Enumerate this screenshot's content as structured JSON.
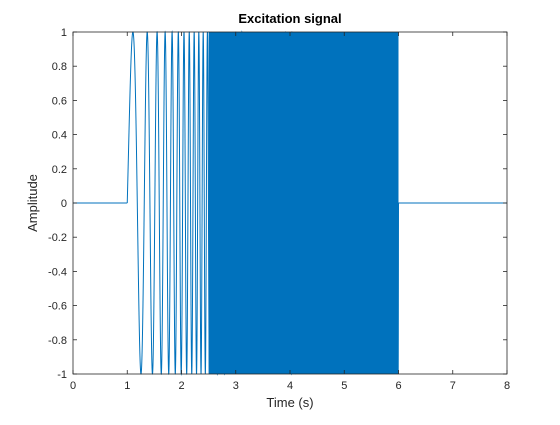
{
  "chart_data": {
    "type": "line",
    "title": "Excitation signal",
    "xlabel": "Time (s)",
    "ylabel": "Amplitude",
    "xlim": [
      0,
      8
    ],
    "ylim": [
      -1,
      1
    ],
    "grid": false,
    "xticks": [
      0,
      1,
      2,
      3,
      4,
      5,
      6,
      7,
      8
    ],
    "yticks": [
      -1,
      -0.8,
      -0.6,
      -0.4,
      -0.2,
      0,
      0.2,
      0.4,
      0.6,
      0.8,
      1
    ],
    "xtick_labels": [
      "0",
      "1",
      "2",
      "3",
      "4",
      "5",
      "6",
      "7",
      "8"
    ],
    "ytick_labels": [
      "-1",
      "-0.8",
      "-0.6",
      "-0.4",
      "-0.2",
      "0",
      "0.2",
      "0.4",
      "0.6",
      "0.8",
      "1"
    ],
    "series": [
      {
        "color": "#0072bd",
        "signal": "swept sine (chirp), amplitude 1",
        "segments": [
          {
            "x": [
              0,
              1
            ],
            "y": [
              0,
              0
            ]
          },
          {
            "x_start": 1,
            "x_end": 6,
            "amplitude": 1,
            "shape": "sine sweep, frequency increasing with time"
          },
          {
            "x": [
              6,
              8
            ],
            "y": [
              0,
              0
            ]
          }
        ]
      }
    ],
    "colors": {
      "line": "#0072bd",
      "axes": "#262626",
      "background": "#ffffff"
    }
  }
}
